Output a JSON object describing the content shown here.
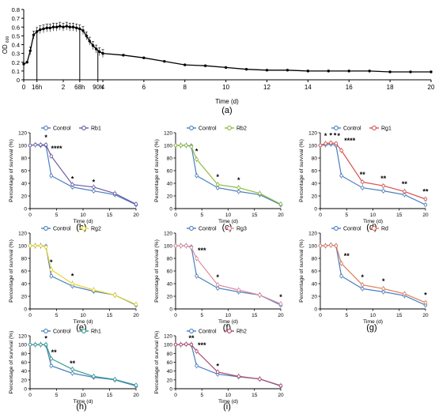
{
  "chart_data": [
    {
      "id": "a",
      "type": "line",
      "panel_label": "(a)",
      "ylabel": "OD",
      "ylabel_sub": "600",
      "xlabel": "Time (d)",
      "ylim": [
        0,
        0.8
      ],
      "yticks": [
        0,
        0.1,
        0.2,
        0.3,
        0.4,
        0.5,
        0.6,
        0.7,
        0.8
      ],
      "ytick_labels": [
        "0",
        "0.1",
        "0.2",
        "0.3",
        "0.4",
        "0.5",
        "0.6",
        "0.7",
        "0.8"
      ],
      "xtick_labels": [
        "0",
        "16h",
        "2",
        "68h",
        "90h",
        "4",
        "6",
        "8",
        "10",
        "12",
        "14",
        "16",
        "18",
        "20"
      ],
      "marked_times": [
        "16h",
        "68h",
        "90h"
      ],
      "series": [
        {
          "x": [
            0,
            0.17,
            0.33,
            0.5,
            0.67,
            0.83,
            1.0,
            1.17,
            1.33,
            1.5,
            1.67,
            1.83,
            2.0,
            2.17,
            2.33,
            2.5,
            2.67,
            2.83,
            3.0,
            3.17,
            3.33,
            3.5,
            3.67,
            3.83,
            4,
            5,
            6,
            7,
            8,
            9,
            10,
            11,
            12,
            13,
            14,
            15,
            16,
            17,
            18,
            19,
            20
          ],
          "y": [
            0.18,
            0.2,
            0.33,
            0.51,
            0.55,
            0.57,
            0.58,
            0.59,
            0.59,
            0.6,
            0.6,
            0.61,
            0.6,
            0.61,
            0.6,
            0.6,
            0.59,
            0.58,
            0.56,
            0.5,
            0.44,
            0.39,
            0.35,
            0.32,
            0.3,
            0.28,
            0.25,
            0.21,
            0.17,
            0.16,
            0.14,
            0.12,
            0.11,
            0.11,
            0.1,
            0.1,
            0.1,
            0.1,
            0.09,
            0.09,
            0.09
          ]
        }
      ]
    },
    {
      "id": "b",
      "type": "line",
      "panel_label": "(b)",
      "ylabel": "Percentage of survival (%)",
      "xlabel": "Time (d)",
      "ylim": [
        0,
        120
      ],
      "yticks": [
        0,
        20,
        40,
        60,
        80,
        100,
        120
      ],
      "xticks": [
        0,
        5,
        10,
        15,
        20
      ],
      "series": [
        {
          "name": "Control",
          "color": "#4a7fc0",
          "x": [
            0,
            1,
            2,
            3,
            4,
            8,
            12,
            16,
            20
          ],
          "y": [
            100,
            101,
            100,
            100,
            52,
            34,
            28,
            22,
            6
          ]
        },
        {
          "name": "Rb1",
          "color": "#6f5aa8",
          "x": [
            0,
            1,
            2,
            3,
            4,
            8,
            12,
            16,
            20
          ],
          "y": [
            100,
            101,
            101,
            101,
            83,
            38,
            34,
            24,
            7
          ]
        }
      ],
      "annotations": [
        {
          "text": "*",
          "x": 3,
          "y": 109
        },
        {
          "text": "****",
          "x": 5,
          "y": 91
        },
        {
          "text": "*",
          "x": 8,
          "y": 43
        },
        {
          "text": "*",
          "x": 12,
          "y": 38
        }
      ]
    },
    {
      "id": "c",
      "type": "line",
      "panel_label": "(c)",
      "ylabel": "Percentage of survival (%)",
      "xlabel": "Time (d)",
      "ylim": [
        0,
        120
      ],
      "yticks": [
        0,
        20,
        40,
        60,
        80,
        100,
        120
      ],
      "xticks": [
        0,
        5,
        10,
        15,
        20
      ],
      "series": [
        {
          "name": "Control",
          "color": "#4a7fc0",
          "x": [
            0,
            1,
            2,
            3,
            4,
            8,
            12,
            16,
            20
          ],
          "y": [
            100,
            100,
            100,
            99,
            52,
            33,
            27,
            22,
            6
          ]
        },
        {
          "name": "Rb2",
          "color": "#8dbb3c",
          "x": [
            0,
            1,
            2,
            3,
            4,
            8,
            12,
            16,
            20
          ],
          "y": [
            100,
            100,
            100,
            98,
            78,
            38,
            33,
            24,
            7
          ]
        }
      ],
      "annotations": [
        {
          "text": "*",
          "x": 4,
          "y": 87
        },
        {
          "text": "*",
          "x": 8,
          "y": 46
        },
        {
          "text": "*",
          "x": 12,
          "y": 41
        }
      ]
    },
    {
      "id": "d",
      "type": "line",
      "panel_label": "(d)",
      "ylabel": "Percentage of survival (%)",
      "xlabel": "Time (d)",
      "ylim": [
        0,
        120
      ],
      "yticks": [
        0,
        20,
        40,
        60,
        80,
        100,
        120
      ],
      "xticks": [
        0,
        5,
        10,
        15,
        20
      ],
      "series": [
        {
          "name": "Control",
          "color": "#4a7fc0",
          "x": [
            0,
            1,
            2,
            3,
            4,
            8,
            12,
            16,
            20
          ],
          "y": [
            100,
            101,
            102,
            100,
            52,
            33,
            28,
            22,
            6
          ]
        },
        {
          "name": "Rg1",
          "color": "#d95050",
          "x": [
            0,
            1,
            2,
            3,
            4,
            8,
            12,
            16,
            20
          ],
          "y": [
            100,
            103,
            104,
            103,
            92,
            42,
            36,
            27,
            15
          ]
        }
      ],
      "annotations": [
        {
          "text": "*",
          "x": 1,
          "y": 111
        },
        {
          "text": "*",
          "x": 2,
          "y": 112
        },
        {
          "text": "*",
          "x": 2.8,
          "y": 112
        },
        {
          "text": "*",
          "x": 3.5,
          "y": 111
        },
        {
          "text": "****",
          "x": 5.6,
          "y": 104
        },
        {
          "text": "**",
          "x": 8,
          "y": 50
        },
        {
          "text": "**",
          "x": 12,
          "y": 44
        },
        {
          "text": "**",
          "x": 16,
          "y": 35
        },
        {
          "text": "**",
          "x": 20,
          "y": 23
        }
      ]
    },
    {
      "id": "e",
      "type": "line",
      "panel_label": "(e)",
      "ylabel": "Percentage of survival (%)",
      "xlabel": "Time (d)",
      "ylim": [
        0,
        120
      ],
      "yticks": [
        0,
        20,
        40,
        60,
        80,
        100,
        120
      ],
      "xticks": [
        0,
        5,
        10,
        15,
        20
      ],
      "series": [
        {
          "name": "Control",
          "color": "#4a7fc0",
          "x": [
            0,
            1,
            2,
            3,
            4,
            8,
            12,
            16,
            20
          ],
          "y": [
            100,
            100,
            100,
            99,
            52,
            36,
            28,
            22,
            6
          ]
        },
        {
          "name": "Rg2",
          "color": "#e6d62e",
          "x": [
            0,
            1,
            2,
            3,
            4,
            8,
            12,
            16,
            20
          ],
          "y": [
            100,
            100,
            100,
            98,
            62,
            40,
            30,
            22,
            7
          ]
        }
      ],
      "annotations": [
        {
          "text": "*",
          "x": 4,
          "y": 70
        },
        {
          "text": "*",
          "x": 8,
          "y": 48
        }
      ]
    },
    {
      "id": "f",
      "type": "line",
      "panel_label": "(f)",
      "ylabel": "Percentage of survival (%)",
      "xlabel": "Time (d)",
      "ylim": [
        0,
        120
      ],
      "yticks": [
        0,
        20,
        40,
        60,
        80,
        100,
        120
      ],
      "xticks": [
        0,
        5,
        10,
        15,
        20
      ],
      "series": [
        {
          "name": "Control",
          "color": "#4a7fc0",
          "x": [
            0,
            1,
            2,
            3,
            4,
            8,
            12,
            16,
            20
          ],
          "y": [
            100,
            100,
            100,
            98,
            52,
            33,
            27,
            22,
            6
          ]
        },
        {
          "name": "Rg3",
          "color": "#e08a9a",
          "x": [
            0,
            1,
            2,
            3,
            4,
            8,
            12,
            16,
            20
          ],
          "y": [
            100,
            100,
            100,
            97,
            80,
            38,
            30,
            22,
            8
          ]
        }
      ],
      "annotations": [
        {
          "text": "***",
          "x": 5,
          "y": 89
        },
        {
          "text": "*",
          "x": 8,
          "y": 46
        },
        {
          "text": "*",
          "x": 20,
          "y": 15
        }
      ]
    },
    {
      "id": "g",
      "type": "line",
      "panel_label": "(g)",
      "ylabel": "Percentage of survival (%)",
      "xlabel": "Time (d)",
      "ylim": [
        0,
        120
      ],
      "yticks": [
        0,
        20,
        40,
        60,
        80,
        100,
        120
      ],
      "xticks": [
        0,
        5,
        10,
        15,
        20
      ],
      "series": [
        {
          "name": "Control",
          "color": "#4a7fc0",
          "x": [
            0,
            1,
            2,
            3,
            4,
            8,
            12,
            16,
            20
          ],
          "y": [
            100,
            100,
            101,
            100,
            52,
            32,
            27,
            21,
            6
          ]
        },
        {
          "name": "Rd",
          "color": "#e07a5a",
          "x": [
            0,
            1,
            2,
            3,
            4,
            8,
            12,
            16,
            20
          ],
          "y": [
            100,
            100,
            101,
            100,
            72,
            38,
            32,
            24,
            10
          ]
        }
      ],
      "annotations": [
        {
          "text": "**",
          "x": 5,
          "y": 80
        },
        {
          "text": "*",
          "x": 8,
          "y": 46
        },
        {
          "text": "*",
          "x": 12,
          "y": 40
        },
        {
          "text": "*",
          "x": 20,
          "y": 18
        }
      ]
    },
    {
      "id": "h",
      "type": "line",
      "panel_label": "(h)",
      "ylabel": "Percentage of survival (%)",
      "xlabel": "Time (d)",
      "ylim": [
        0,
        120
      ],
      "yticks": [
        0,
        20,
        40,
        60,
        80,
        100,
        120
      ],
      "xticks": [
        0,
        5,
        10,
        15,
        20
      ],
      "series": [
        {
          "name": "Control",
          "color": "#4a7fc0",
          "x": [
            0,
            1,
            2,
            3,
            4,
            8,
            12,
            16,
            20
          ],
          "y": [
            100,
            100,
            100,
            99,
            52,
            35,
            26,
            20,
            6
          ]
        },
        {
          "name": "Rh1",
          "color": "#2f9b8f",
          "x": [
            0,
            1,
            2,
            3,
            4,
            8,
            12,
            16,
            20
          ],
          "y": [
            100,
            100,
            100,
            100,
            68,
            44,
            28,
            21,
            8
          ]
        }
      ],
      "annotations": [
        {
          "text": "*",
          "x": 3,
          "y": 108
        },
        {
          "text": "**",
          "x": 4.5,
          "y": 77
        },
        {
          "text": "**",
          "x": 8,
          "y": 52
        }
      ]
    },
    {
      "id": "i",
      "type": "line",
      "panel_label": "(i)",
      "ylabel": "Percentage of survival (%)",
      "xlabel": "Time (d)",
      "ylim": [
        0,
        120
      ],
      "yticks": [
        0,
        20,
        40,
        60,
        80,
        100,
        120
      ],
      "xticks": [
        0,
        5,
        10,
        15,
        20
      ],
      "series": [
        {
          "name": "Control",
          "color": "#4a7fc0",
          "x": [
            0,
            1,
            2,
            3,
            4,
            8,
            12,
            16,
            20
          ],
          "y": [
            100,
            100,
            101,
            100,
            52,
            33,
            27,
            22,
            6
          ]
        },
        {
          "name": "Rh2",
          "color": "#b0436a",
          "x": [
            0,
            1,
            2,
            3,
            4,
            8,
            12,
            16,
            20
          ],
          "y": [
            100,
            100,
            101,
            100,
            85,
            38,
            28,
            22,
            7
          ]
        }
      ],
      "annotations": [
        {
          "text": "**",
          "x": 3,
          "y": 109
        },
        {
          "text": "***",
          "x": 5,
          "y": 93
        },
        {
          "text": "*",
          "x": 8,
          "y": 46
        }
      ]
    }
  ]
}
